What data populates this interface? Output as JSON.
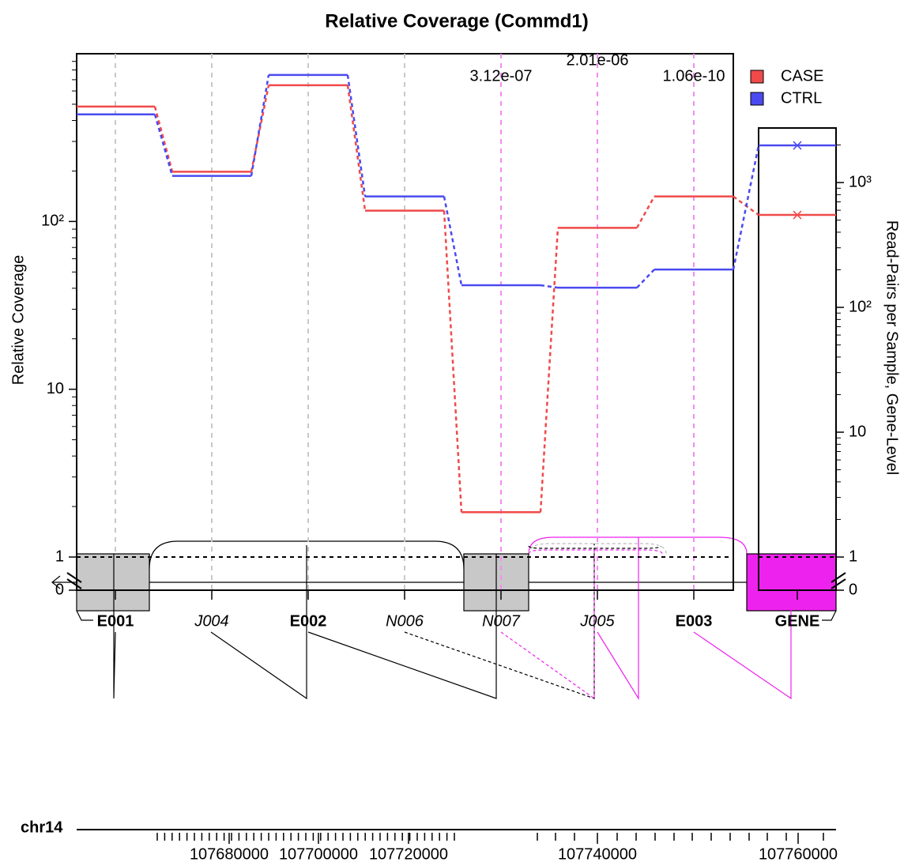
{
  "chart_data": [
    {
      "type": "step_line",
      "title": "Relative Coverage (Commd1)",
      "y_label": "Relative Coverage",
      "categories": [
        "E001",
        "J004",
        "E002",
        "N006",
        "N007",
        "J005",
        "E003"
      ],
      "series": [
        {
          "name": "CASE",
          "color": "#f04a4a",
          "values": [
            484,
            198,
            649,
            116,
            1.85,
            91.7,
            141
          ]
        },
        {
          "name": "CTRL",
          "color": "#4a4af0",
          "values": [
            435,
            187,
            747,
            141,
            41.7,
            40.3,
            51.7
          ]
        }
      ],
      "pvalue_labels": [
        null,
        null,
        null,
        null,
        "3.12e-07",
        "2.01e-06",
        "1.06e-10"
      ],
      "ylim": [
        0,
        1000
      ],
      "yticks": [
        0,
        1,
        10,
        {
          "value": 100,
          "label": "10²"
        }
      ],
      "log_scale": true,
      "axis_break": 1,
      "legend": "top-right"
    },
    {
      "type": "gene_point",
      "y_label": "Read-Pairs per Sample, Gene-Level",
      "categories": [
        "GENE"
      ],
      "series": [
        {
          "color": "#f04a4a",
          "values": [
            550
          ]
        },
        {
          "color": "#4a4af0",
          "values": [
            1983
          ]
        }
      ],
      "ylim": [
        0,
        2735
      ],
      "yticks": [
        0,
        1,
        10,
        {
          "value": 100,
          "label": "10²"
        },
        {
          "value": 1000,
          "label": "10³"
        }
      ],
      "log_scale": true,
      "axis_break": 1
    },
    {
      "type": "gene_model",
      "chromosome": "chr14",
      "xticks": [
        107680000,
        107700000,
        107720000,
        107740000,
        107760000
      ]
    }
  ]
}
